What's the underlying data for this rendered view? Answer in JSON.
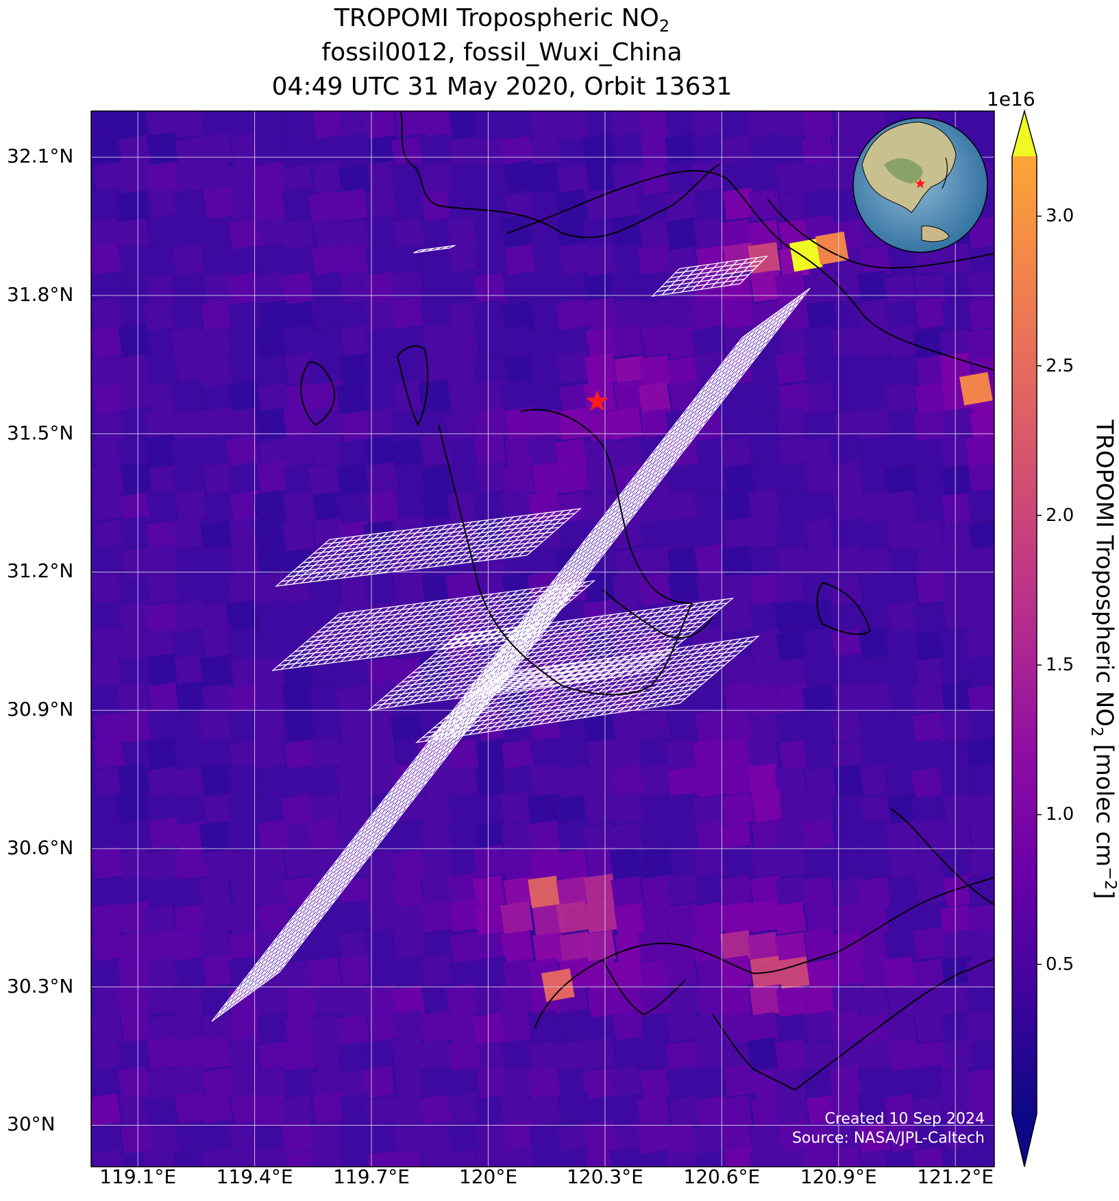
{
  "title": {
    "line1_prefix": "TROPOMI Tropospheric NO",
    "line1_sub": "2",
    "line2": "fossil0012, fossil_Wuxi_China",
    "line3": "04:49 UTC 31 May 2020, Orbit 13631"
  },
  "map": {
    "lat_ticks": [
      "32.1°N",
      "31.8°N",
      "31.5°N",
      "31.2°N",
      "30.9°N",
      "30.6°N",
      "30.3°N",
      "30°N"
    ],
    "lon_ticks": [
      "119.1°E",
      "119.4°E",
      "119.7°E",
      "120°E",
      "120.3°E",
      "120.6°E",
      "120.9°E",
      "121.2°E"
    ],
    "lat_range": [
      29.91,
      32.2
    ],
    "lon_range": [
      118.98,
      121.3
    ],
    "target": {
      "lon": 120.28,
      "lat": 31.57,
      "color": "#ff1a1a"
    },
    "colormap": "plasma"
  },
  "colorbar": {
    "exponent": "1e16",
    "ticks": [
      "3.0",
      "2.5",
      "2.0",
      "1.5",
      "1.0",
      "0.5"
    ],
    "range": [
      0,
      3.2
    ],
    "label_prefix": "TROPOMI Tropospheric NO",
    "label_sub": "2",
    "label_mid": " [molec cm",
    "label_sup": "−2",
    "label_suffix": "]"
  },
  "credit": {
    "line1": "Created 10 Sep 2024",
    "line2": "Source: NASA/JPL-Caltech"
  }
}
